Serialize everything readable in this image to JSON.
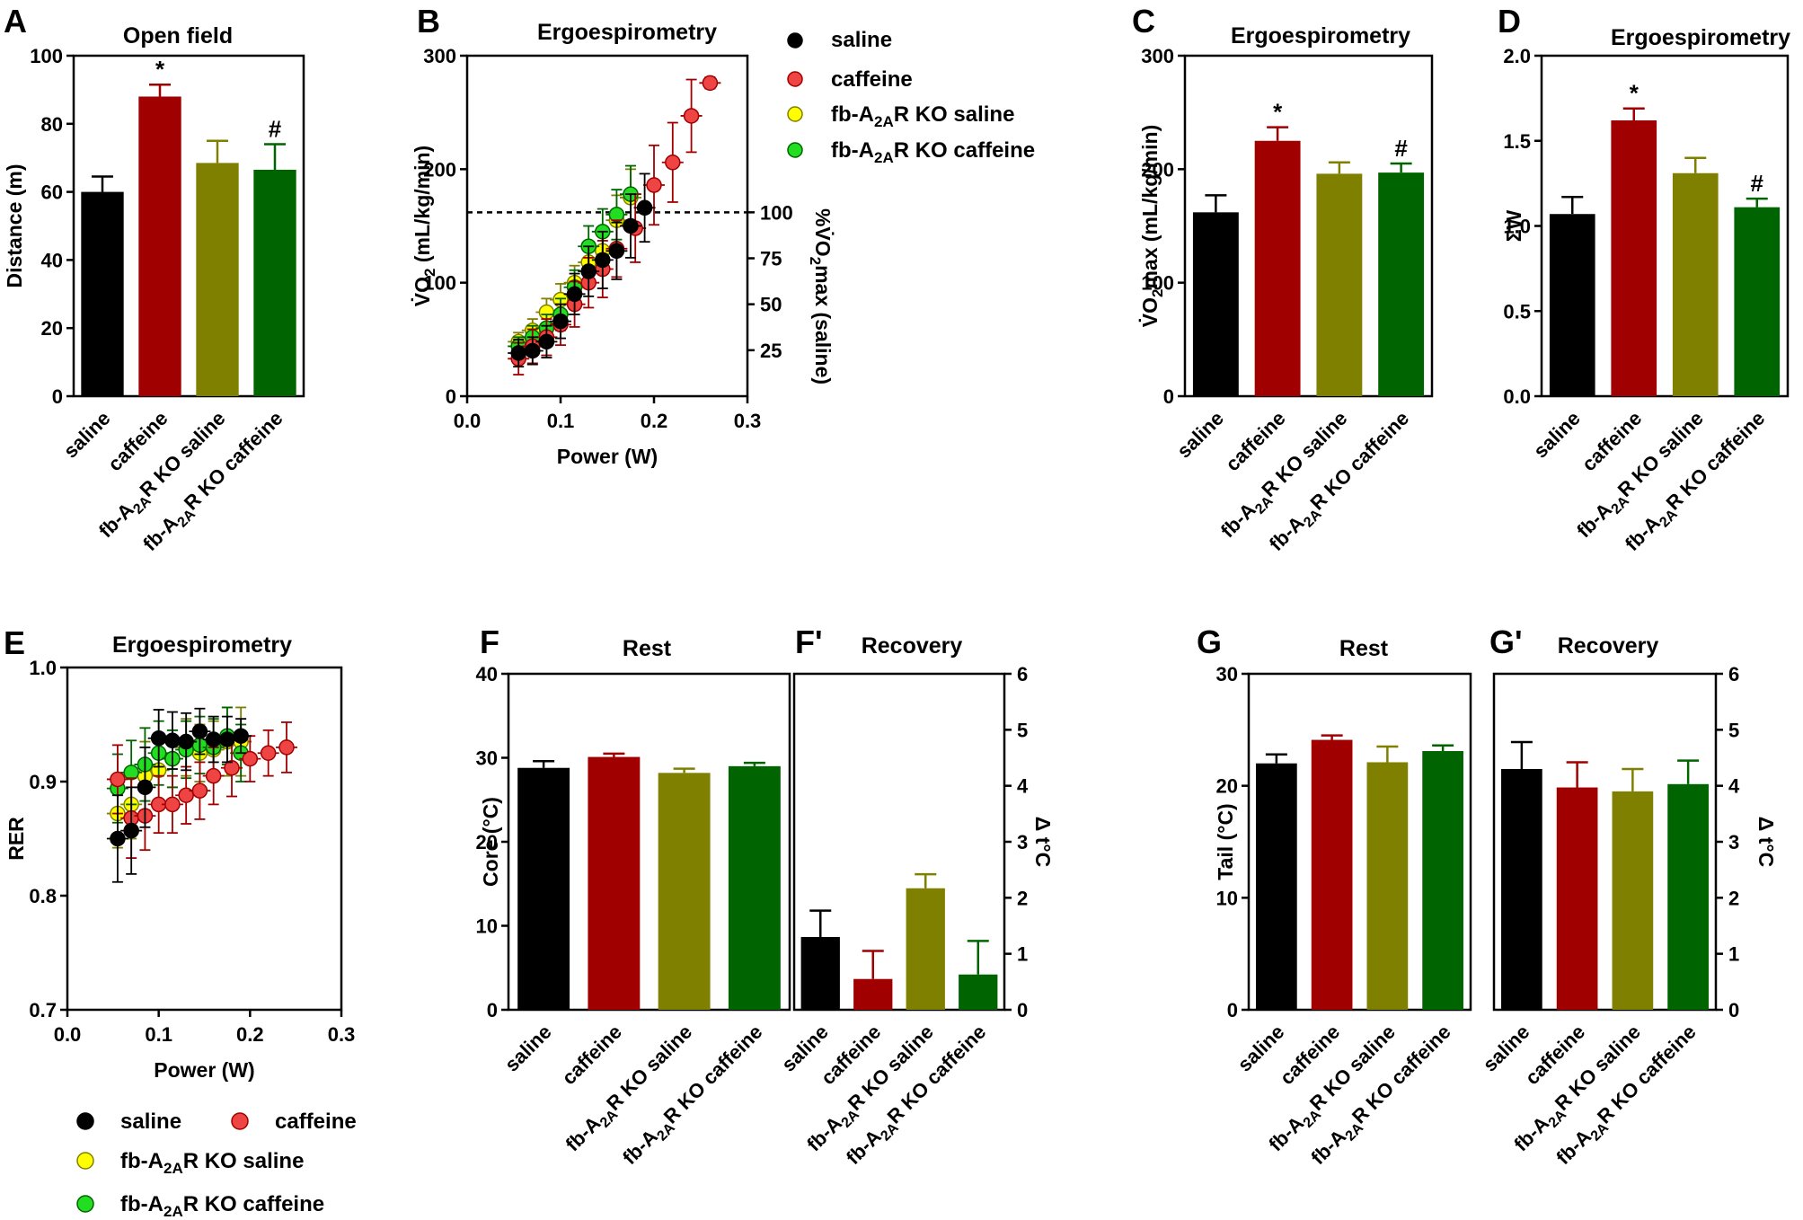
{
  "colors": {
    "saline": "#000000",
    "caffeine": "#a00000",
    "ko_saline": "#808000",
    "ko_caffeine": "#006400",
    "sc_saline": "#000000",
    "sc_caffeine": "#ee4444",
    "sc_ko_saline": "#ffff00",
    "sc_ko_caffeine": "#22dd22",
    "leg_caffeine_text": "#a00000",
    "leg_ko_saline_text": "#808000",
    "leg_ko_caffeine_text": "#006400"
  },
  "legend": {
    "saline": "saline",
    "caffeine": "caffeine",
    "ko_prefix": "fb-A",
    "ko_sub": "2A",
    "ko_saline_suffix": "R KO saline",
    "ko_caffeine_suffix": "R KO caffeine"
  },
  "categories": {
    "saline": "saline",
    "caffeine": "caffeine",
    "ko_prefix": "fb-A",
    "ko_sub": "2A",
    "ko_saline_suffix": "R KO saline",
    "ko_caffeine_suffix": "R KO caffeine",
    "ko_saline_plain": "fb-A2AR KO saline",
    "ko_caffeine_plain": "fb-A2AR KO caffeine"
  },
  "chart_data": [
    {
      "id": "A",
      "panel_label": "A",
      "type": "bar",
      "title": "Open field",
      "ylabel": "Distance (m)",
      "ylim": [
        0,
        100
      ],
      "yticks": [
        "0",
        "20",
        "40",
        "60",
        "80",
        "100"
      ],
      "categories": [
        "saline",
        "caffeine",
        "fb-A2AR KO saline",
        "fb-A2AR KO caffeine"
      ],
      "values": [
        60,
        88,
        68.5,
        66.5
      ],
      "errors": [
        4.5,
        3.5,
        6.5,
        7.5
      ],
      "annotations": [
        "",
        "*",
        "",
        "#"
      ]
    },
    {
      "id": "B",
      "panel_label": "B",
      "type": "scatter",
      "title": "Ergoespirometry",
      "xlabel": "Power (W)",
      "ylabel_pre": "V̇O",
      "ylabel_sub": "2",
      "ylabel_post": " (mL/kg/min)",
      "y2label_pre": "%V̇O",
      "y2label_sub": "2",
      "y2label_post": "max (saline)",
      "xlim": [
        0,
        0.3
      ],
      "ylim": [
        0,
        300
      ],
      "xticks": [
        "0.0",
        "0.1",
        "0.2",
        "0.3"
      ],
      "yticks": [
        "0",
        "100",
        "200",
        "300"
      ],
      "y2ticks": [
        "25",
        "50",
        "75",
        "100"
      ],
      "reference_line_y": 162,
      "series": [
        {
          "name": "saline",
          "x": [
            0.055,
            0.07,
            0.085,
            0.1,
            0.115,
            0.13,
            0.145,
            0.16,
            0.175,
            0.19
          ],
          "y": [
            38,
            40,
            48,
            66,
            90,
            110,
            120,
            128,
            150,
            166
          ],
          "err": [
            12,
            12,
            14,
            15,
            18,
            22,
            25,
            25,
            28,
            30
          ]
        },
        {
          "name": "caffeine",
          "x": [
            0.055,
            0.07,
            0.085,
            0.1,
            0.115,
            0.13,
            0.145,
            0.16,
            0.18,
            0.2,
            0.22,
            0.24,
            0.26
          ],
          "y": [
            33,
            44,
            52,
            63,
            81,
            100,
            112,
            130,
            148,
            186,
            206,
            247,
            276
          ],
          "err": [
            14,
            15,
            16,
            18,
            20,
            22,
            25,
            25,
            30,
            35,
            35,
            32,
            5
          ]
        },
        {
          "name": "fb-A2AR KO saline",
          "x": [
            0.055,
            0.07,
            0.085,
            0.1,
            0.115,
            0.13,
            0.145,
            0.16,
            0.175
          ],
          "y": [
            48,
            58,
            74,
            85,
            100,
            118,
            128,
            155,
            175
          ],
          "err": [
            8,
            10,
            12,
            14,
            15,
            18,
            20,
            22,
            25
          ]
        },
        {
          "name": "fb-A2AR KO caffeine",
          "x": [
            0.055,
            0.07,
            0.085,
            0.1,
            0.115,
            0.13,
            0.145,
            0.16,
            0.175
          ],
          "y": [
            44,
            52,
            60,
            72,
            96,
            132,
            145,
            160,
            178
          ],
          "err": [
            8,
            10,
            12,
            14,
            15,
            18,
            20,
            22,
            25
          ]
        }
      ]
    },
    {
      "id": "C",
      "panel_label": "C",
      "type": "bar",
      "title": "Ergoespirometry",
      "ylabel_pre": "V̇O",
      "ylabel_sub": "2",
      "ylabel_post": "max (mL/kg/min)",
      "ylim": [
        0,
        300
      ],
      "yticks": [
        "0",
        "100",
        "200",
        "300"
      ],
      "categories": [
        "saline",
        "caffeine",
        "fb-A2AR KO saline",
        "fb-A2AR KO caffeine"
      ],
      "values": [
        162,
        225,
        196,
        197
      ],
      "errors": [
        15,
        12,
        10,
        8
      ],
      "annotations": [
        "",
        "*",
        "",
        "#"
      ]
    },
    {
      "id": "D",
      "panel_label": "D",
      "type": "bar",
      "title": "Ergoespirometry",
      "ylabel": "ΣW",
      "ylim": [
        0,
        2.0
      ],
      "yticks": [
        "0.0",
        "0.5",
        "1.0",
        "1.5",
        "2.0"
      ],
      "categories": [
        "saline",
        "caffeine",
        "fb-A2AR KO saline",
        "fb-A2AR KO caffeine"
      ],
      "values": [
        1.07,
        1.62,
        1.31,
        1.11
      ],
      "errors": [
        0.1,
        0.07,
        0.09,
        0.05
      ],
      "annotations": [
        "",
        "*",
        "",
        "#"
      ]
    },
    {
      "id": "E",
      "panel_label": "E",
      "type": "scatter",
      "title": "Ergoespirometry",
      "xlabel": "Power (W)",
      "ylabel": "RER",
      "xlim": [
        0,
        0.3
      ],
      "ylim": [
        0.7,
        1.0
      ],
      "xticks": [
        "0.0",
        "0.1",
        "0.2",
        "0.3"
      ],
      "yticks": [
        "0.7",
        "0.8",
        "0.9",
        "1.0"
      ],
      "series": [
        {
          "name": "saline",
          "x": [
            0.055,
            0.07,
            0.085,
            0.1,
            0.115,
            0.13,
            0.145,
            0.16,
            0.175,
            0.19
          ],
          "y": [
            0.85,
            0.857,
            0.895,
            0.938,
            0.936,
            0.935,
            0.944,
            0.937,
            0.937,
            0.94
          ],
          "err": [
            0.038,
            0.038,
            0.035,
            0.025,
            0.025,
            0.025,
            0.02,
            0.02,
            0.02,
            0.015
          ]
        },
        {
          "name": "caffeine",
          "x": [
            0.055,
            0.07,
            0.085,
            0.1,
            0.115,
            0.13,
            0.145,
            0.16,
            0.18,
            0.2,
            0.22,
            0.24
          ],
          "y": [
            0.902,
            0.868,
            0.87,
            0.88,
            0.88,
            0.888,
            0.892,
            0.905,
            0.912,
            0.92,
            0.925,
            0.93
          ],
          "err": [
            0.03,
            0.035,
            0.03,
            0.025,
            0.025,
            0.025,
            0.025,
            0.025,
            0.025,
            0.02,
            0.02,
            0.022
          ]
        },
        {
          "name": "fb-A2AR KO saline",
          "x": [
            0.055,
            0.07,
            0.085,
            0.1,
            0.115,
            0.13,
            0.145,
            0.16,
            0.175,
            0.19
          ],
          "y": [
            0.872,
            0.88,
            0.905,
            0.91,
            0.92,
            0.93,
            0.925,
            0.928,
            0.935,
            0.935
          ],
          "err": [
            0.03,
            0.03,
            0.03,
            0.028,
            0.025,
            0.025,
            0.025,
            0.025,
            0.03,
            0.03
          ]
        },
        {
          "name": "fb-A2AR KO caffeine",
          "x": [
            0.055,
            0.07,
            0.085,
            0.1,
            0.115,
            0.13,
            0.145,
            0.16,
            0.175,
            0.19
          ],
          "y": [
            0.894,
            0.908,
            0.915,
            0.925,
            0.92,
            0.928,
            0.932,
            0.93,
            0.94,
            0.925
          ],
          "err": [
            0.03,
            0.028,
            0.032,
            0.028,
            0.025,
            0.025,
            0.025,
            0.025,
            0.025,
            0.025
          ]
        }
      ]
    },
    {
      "id": "F",
      "panel_label": "F",
      "type": "bar",
      "title": "Rest",
      "ylabel": "Core (°C)",
      "ylim": [
        0,
        40
      ],
      "yticks": [
        "0",
        "10",
        "20",
        "30",
        "40"
      ],
      "categories": [
        "saline",
        "caffeine",
        "fb-A2AR KO saline",
        "fb-A2AR KO caffeine"
      ],
      "values": [
        28.8,
        30.1,
        28.2,
        29.0
      ],
      "errors": [
        0.8,
        0.4,
        0.5,
        0.4
      ]
    },
    {
      "id": "F2",
      "panel_label": "F'",
      "type": "bar",
      "title": "Recovery",
      "y2label": "Δ t°C",
      "ylim": [
        0,
        6
      ],
      "yticks": [
        "0",
        "1",
        "2",
        "3",
        "4",
        "5",
        "6"
      ],
      "categories": [
        "saline",
        "caffeine",
        "fb-A2AR KO saline",
        "fb-A2AR KO caffeine"
      ],
      "values": [
        1.3,
        0.55,
        2.17,
        0.63
      ],
      "errors": [
        0.47,
        0.5,
        0.25,
        0.6
      ]
    },
    {
      "id": "G",
      "panel_label": "G",
      "type": "bar",
      "title": "Rest",
      "ylabel": "Tail (°C)",
      "ylim": [
        0,
        30
      ],
      "yticks": [
        "0",
        "10",
        "20",
        "30"
      ],
      "categories": [
        "saline",
        "caffeine",
        "fb-A2AR KO saline",
        "fb-A2AR KO caffeine"
      ],
      "values": [
        22.0,
        24.1,
        22.1,
        23.1
      ],
      "errors": [
        0.8,
        0.4,
        1.4,
        0.5
      ]
    },
    {
      "id": "G2",
      "panel_label": "G'",
      "type": "bar",
      "title": "Recovery",
      "y2label": "Δ t°C",
      "ylim": [
        0,
        6
      ],
      "yticks": [
        "0",
        "1",
        "2",
        "3",
        "4",
        "5",
        "6"
      ],
      "categories": [
        "saline",
        "caffeine",
        "fb-A2AR KO saline",
        "fb-A2AR KO caffeine"
      ],
      "values": [
        4.3,
        3.97,
        3.9,
        4.03
      ],
      "errors": [
        0.48,
        0.45,
        0.4,
        0.42
      ]
    }
  ]
}
